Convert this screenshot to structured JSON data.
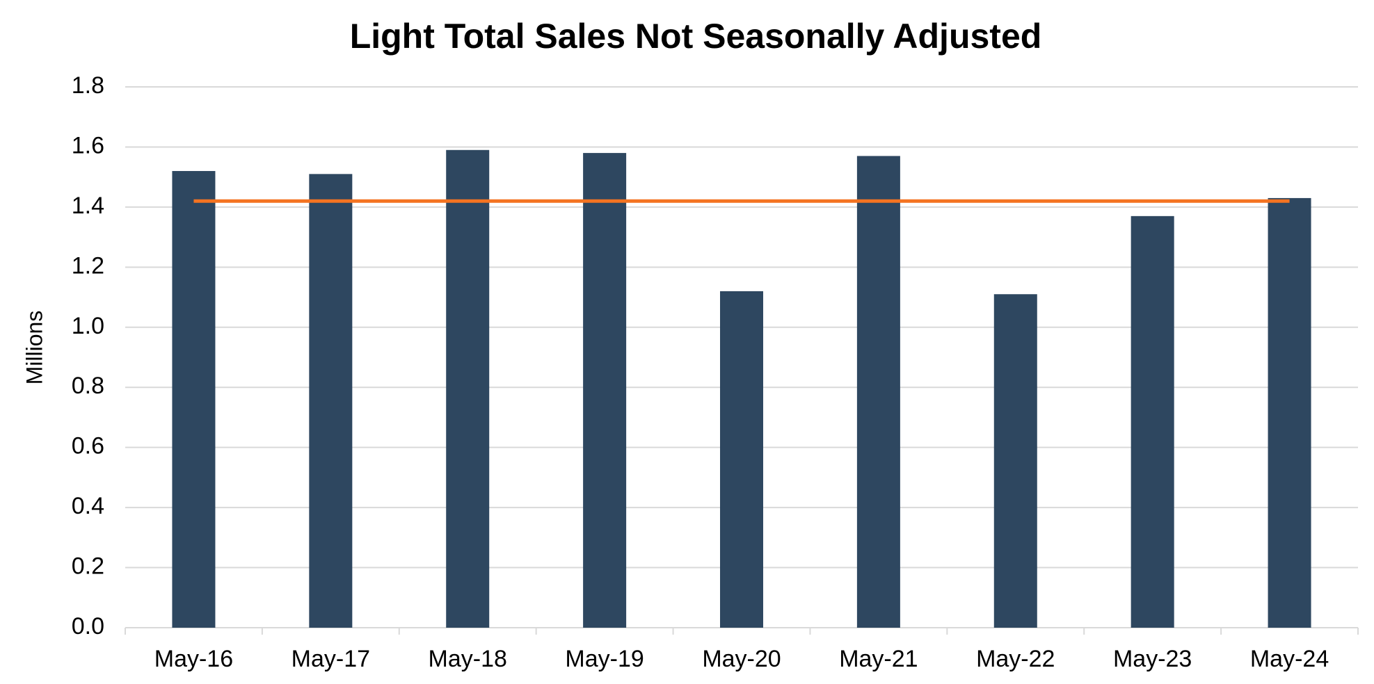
{
  "chart_data": {
    "type": "bar",
    "title": "Light Total Sales Not Seasonally Adjusted",
    "y_label": "Millions",
    "categories": [
      "May-16",
      "May-17",
      "May-18",
      "May-19",
      "May-20",
      "May-21",
      "May-22",
      "May-23",
      "May-24"
    ],
    "values": [
      1.52,
      1.51,
      1.59,
      1.58,
      1.12,
      1.57,
      1.11,
      1.37,
      1.43
    ],
    "color": "#2e4760",
    "reference_line": {
      "value": 1.42,
      "color": "#f47321"
    },
    "ylim": [
      0,
      1.8
    ],
    "yticks": [
      {
        "value": 0,
        "label": "0.0"
      },
      0.2,
      0.4,
      0.6,
      0.8,
      {
        "value": 1,
        "label": "1.0"
      },
      1.2,
      1.4,
      1.6,
      1.8
    ],
    "grid": true
  }
}
